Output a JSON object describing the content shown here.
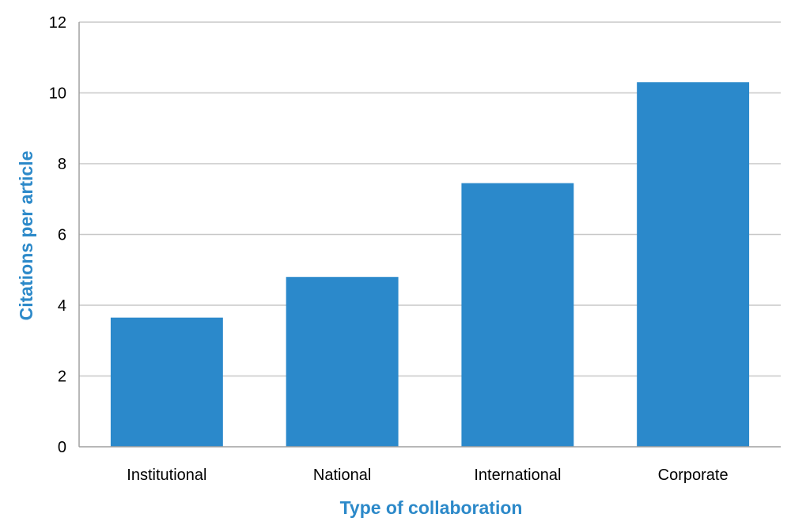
{
  "chart_data": {
    "type": "bar",
    "categories": [
      "Institutional",
      "National",
      "International",
      "Corporate"
    ],
    "values": [
      3.65,
      4.8,
      7.45,
      10.3
    ],
    "xlabel": "Type of collaboration",
    "ylabel": "Citations per article",
    "ylim": [
      0,
      12
    ],
    "yticks": [
      0,
      2,
      4,
      6,
      8,
      10,
      12
    ],
    "grid": true,
    "legend": "none",
    "colors": {
      "bar": "#2b89cb",
      "axis_title": "#2c89c9",
      "grid": "#c8c8c8"
    }
  }
}
